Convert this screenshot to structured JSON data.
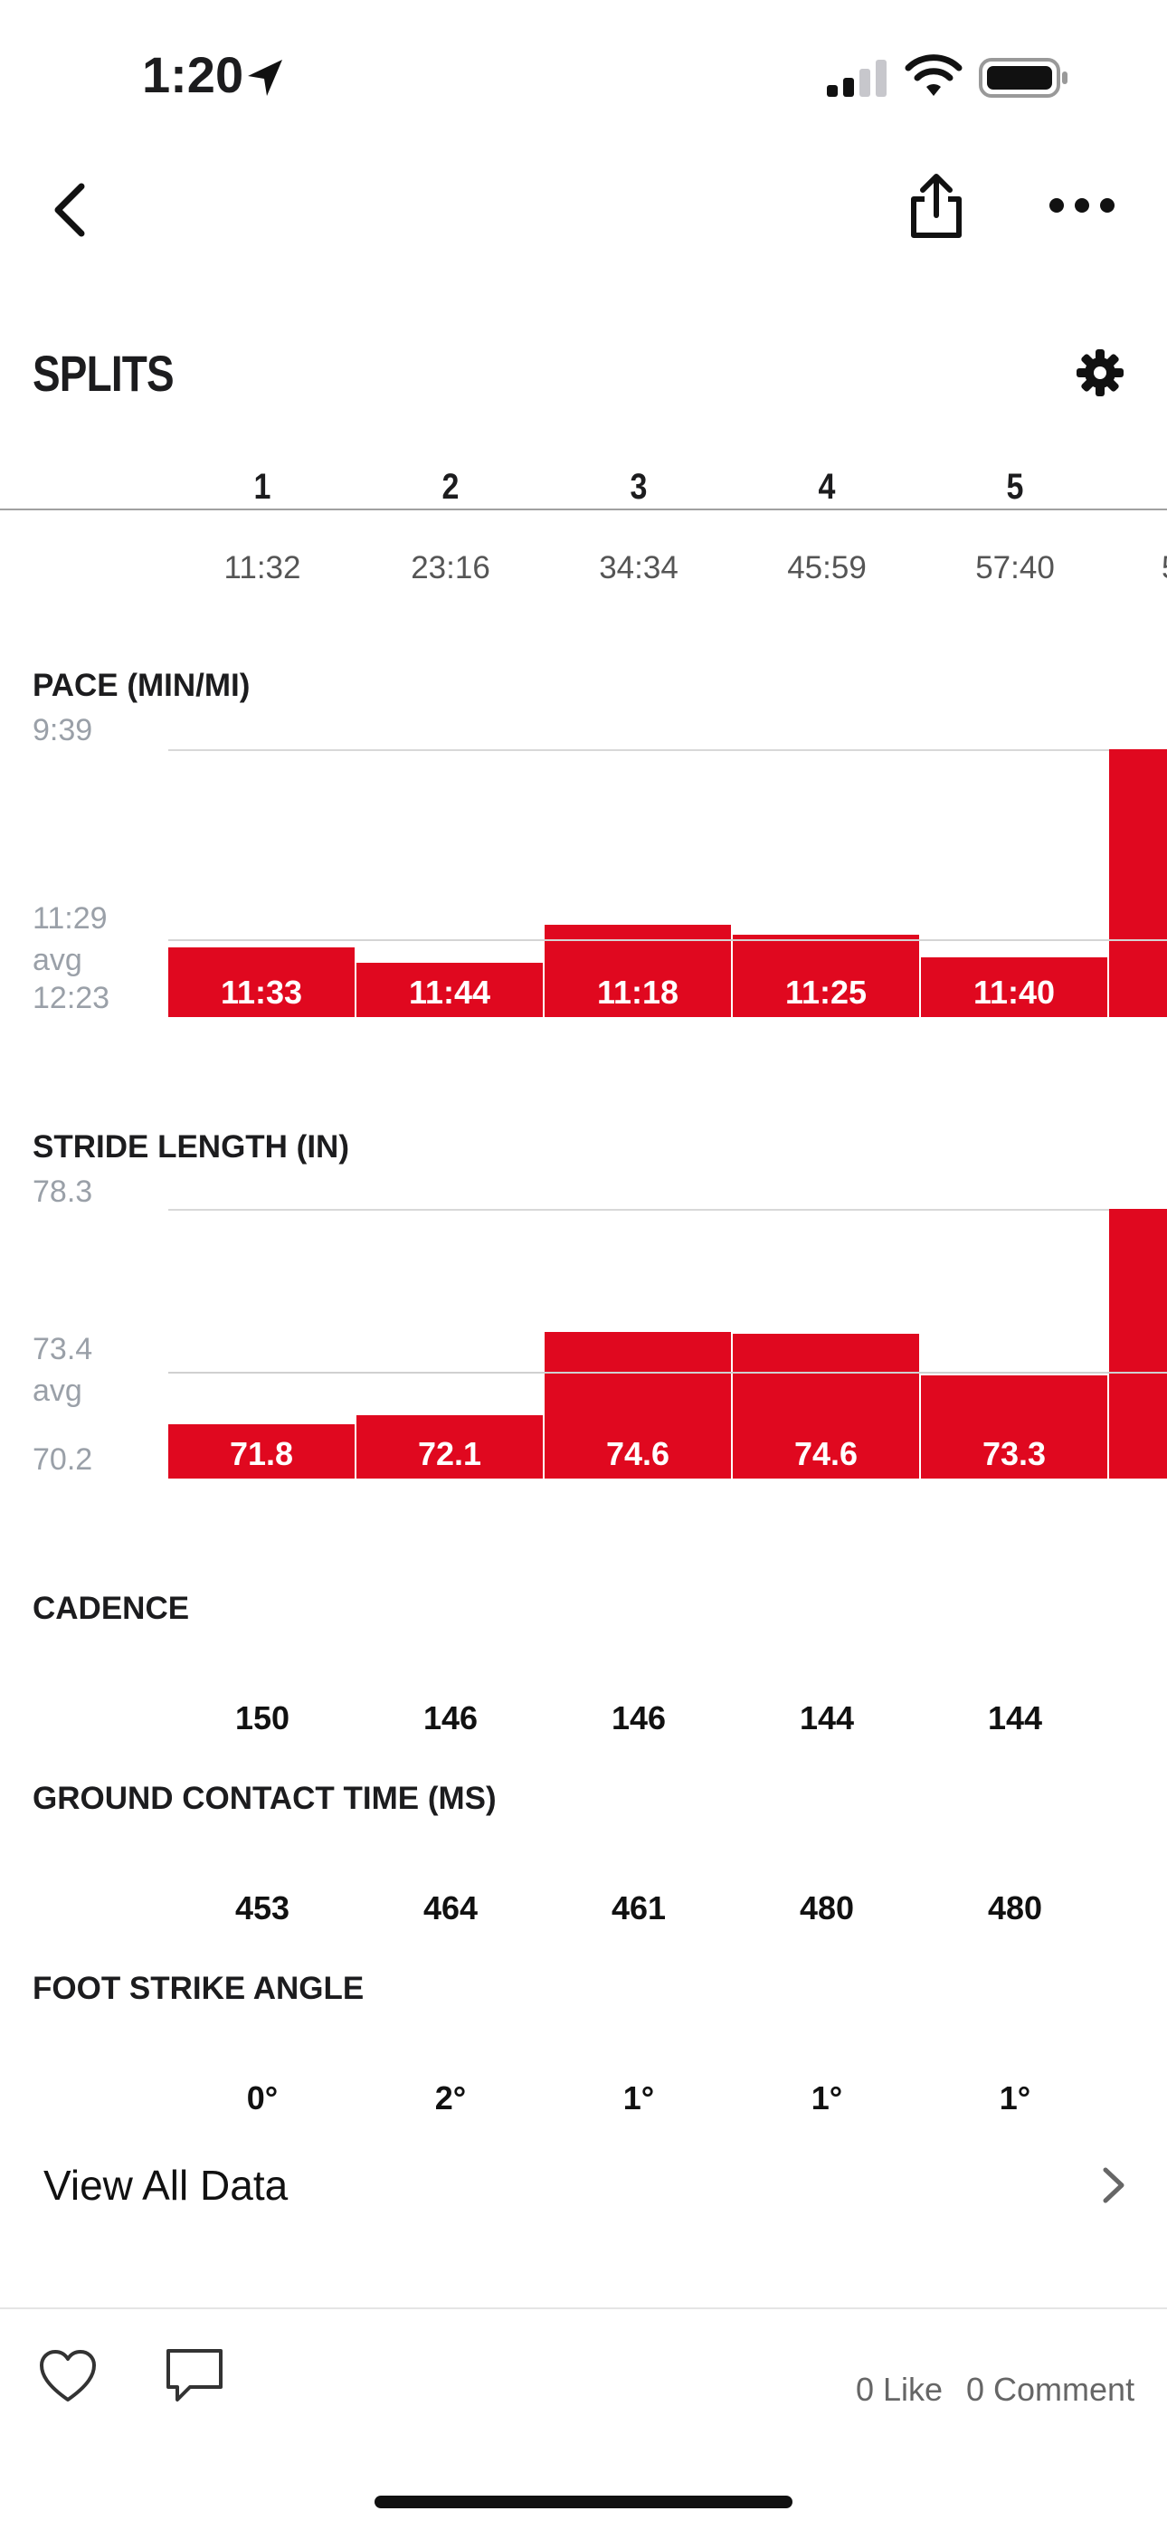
{
  "status_bar": {
    "time": "1:20"
  },
  "header": {
    "title": "SPLITS"
  },
  "splits": [
    {
      "num": "1",
      "time": "11:32"
    },
    {
      "num": "2",
      "time": "23:16"
    },
    {
      "num": "3",
      "time": "34:34"
    },
    {
      "num": "4",
      "time": "45:59"
    },
    {
      "num": "5",
      "time": "57:40"
    },
    {
      "num": "",
      "time": "5"
    }
  ],
  "pace": {
    "label": "PACE (MIN/MI)",
    "axis_top": "9:39",
    "axis_avg": "11:29",
    "axis_avg_word": "avg",
    "axis_bottom": "12:23",
    "bars": [
      "11:33",
      "11:44",
      "11:18",
      "11:25",
      "11:40"
    ]
  },
  "stride": {
    "label": "STRIDE LENGTH (IN)",
    "axis_top": "78.3",
    "axis_avg": "73.4",
    "axis_avg_word": "avg",
    "axis_bottom": "70.2",
    "bars": [
      "71.8",
      "72.1",
      "74.6",
      "74.6",
      "73.3"
    ]
  },
  "cadence": {
    "label": "CADENCE",
    "values": [
      "150",
      "146",
      "146",
      "144",
      "144"
    ]
  },
  "gct": {
    "label": "GROUND CONTACT TIME (MS)",
    "values": [
      "453",
      "464",
      "461",
      "480",
      "480"
    ]
  },
  "fsa": {
    "label": "FOOT STRIKE ANGLE",
    "values": [
      "0°",
      "2°",
      "1°",
      "1°",
      "1°"
    ]
  },
  "view_all": {
    "label": "View All Data"
  },
  "footer": {
    "likes": "0 Like",
    "comments": "0 Comment"
  },
  "colors": {
    "accent": "#e0081f",
    "grid": "#d8d8d8",
    "axis_text": "#9aa0a8"
  }
}
